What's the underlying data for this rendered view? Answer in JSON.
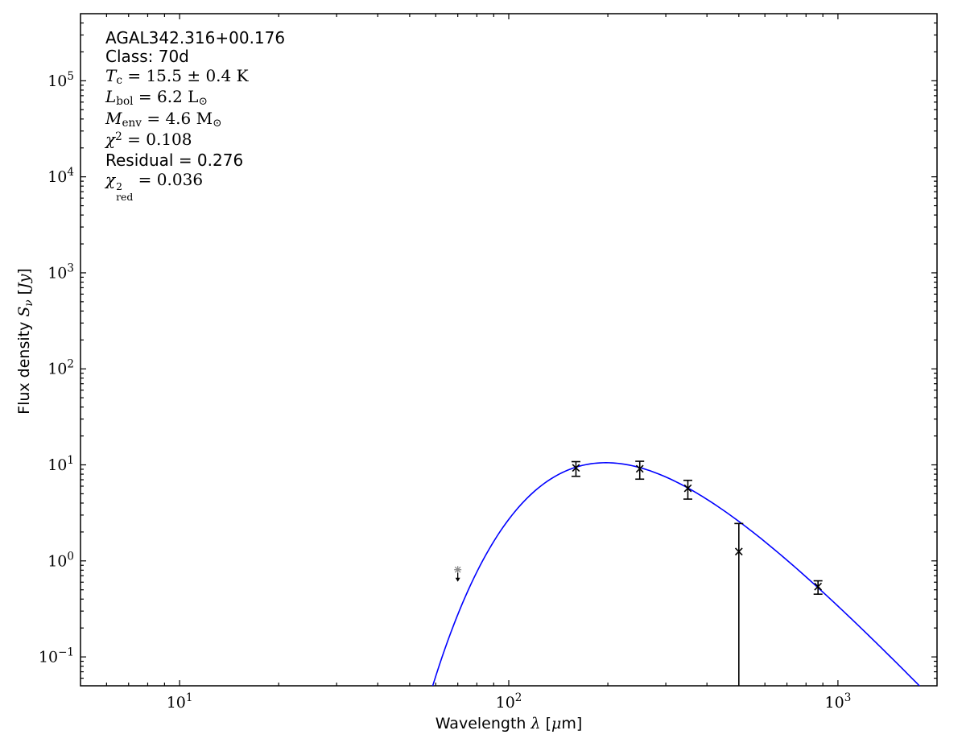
{
  "page": {
    "background": "#ffffff"
  },
  "annotation": {
    "lines": [
      {
        "name": "source-name",
        "font": "sans",
        "segs": [
          {
            "t": "AGAL342.316+00.176"
          }
        ]
      },
      {
        "name": "class-label",
        "font": "sans",
        "segs": [
          {
            "t": "Class: 70d"
          }
        ]
      },
      {
        "name": "dust-temperature",
        "font": "math",
        "segs": [
          {
            "t": "T",
            "it": true
          },
          {
            "t": "c",
            "sub": true
          },
          {
            "t": " = 15.5 ± 0.4 K"
          }
        ]
      },
      {
        "name": "bolometric-luminosity",
        "font": "math",
        "segs": [
          {
            "t": "L",
            "it": true
          },
          {
            "t": "bol",
            "sub": true
          },
          {
            "t": " = 6.2 L"
          },
          {
            "t": "⊙",
            "sub": true
          }
        ]
      },
      {
        "name": "envelope-mass",
        "font": "math",
        "segs": [
          {
            "t": "M",
            "it": true
          },
          {
            "t": "env",
            "sub": true
          },
          {
            "t": " = 4.6 M"
          },
          {
            "t": "⊙",
            "sub": true
          }
        ]
      },
      {
        "name": "chi-squared",
        "font": "math",
        "segs": [
          {
            "t": "χ",
            "it": true
          },
          {
            "t": "2",
            "sup": true
          },
          {
            "t": " = 0.108"
          }
        ]
      },
      {
        "name": "residual",
        "font": "sans",
        "segs": [
          {
            "t": "Residual = 0.276"
          }
        ]
      },
      {
        "name": "chi-squared-reduced",
        "font": "math",
        "segs": [
          {
            "t": "χ",
            "it": true
          },
          {
            "stack": {
              "top": "2",
              "bot": "red"
            }
          },
          {
            "t": " = 0.036"
          }
        ]
      }
    ]
  },
  "chart_data": {
    "type": "line",
    "description": "Spectral energy distribution (SED) with greybody fit and photometric data points",
    "x_axis": {
      "scale": "log",
      "min": 5,
      "max": 2000,
      "major_tick_values": [
        10,
        100,
        1000
      ],
      "label_plain": "Wavelength λ [μm]"
    },
    "y_axis": {
      "scale": "log",
      "min": 0.05,
      "max": 500000,
      "major_tick_values": [
        0.1,
        1,
        10,
        100,
        1000,
        10000,
        100000
      ],
      "label_plain": "Flux density Sν [Jy]"
    },
    "x_label_segs": [
      {
        "t": "Wavelength ",
        "f": "sans"
      },
      {
        "t": "λ",
        "f": "mathit"
      },
      {
        "t": " [",
        "f": "sans"
      },
      {
        "t": "μ",
        "f": "mathit"
      },
      {
        "t": "m]",
        "f": "sans"
      }
    ],
    "y_label_segs": [
      {
        "t": "Flux density ",
        "f": "sans"
      },
      {
        "t": "S",
        "f": "mathit"
      },
      {
        "t": "ν",
        "f": "mathit",
        "sub": true
      },
      {
        "t": " [",
        "f": "sans"
      },
      {
        "t": "Jy",
        "f": "mathit"
      },
      {
        "t": "]",
        "f": "sans"
      }
    ],
    "fit_curve": {
      "model": "greybody",
      "T_K": 15.5,
      "beta": 1.75,
      "amplitude": 92000000000000.0,
      "hc_over_k_um_K": 14388,
      "color": "#0000ff",
      "lambda_min_um": 50,
      "lambda_max_um": 2000,
      "reference_points_um_jy": [
        [
          70,
          0.28
        ],
        [
          100,
          2.7
        ],
        [
          160,
          9.4
        ],
        [
          200,
          10.5
        ],
        [
          250,
          9.3
        ],
        [
          350,
          5.8
        ],
        [
          500,
          2.6
        ],
        [
          870,
          0.53
        ],
        [
          1200,
          0.19
        ],
        [
          1790,
          0.05
        ]
      ]
    },
    "points": [
      {
        "lambda_um": 160,
        "flux_jy": 9.3,
        "err_plus_jy": 1.5,
        "err_minus_jy": 1.7
      },
      {
        "lambda_um": 250,
        "flux_jy": 9.1,
        "err_plus_jy": 1.8,
        "err_minus_jy": 2.0
      },
      {
        "lambda_um": 350,
        "flux_jy": 5.7,
        "err_plus_jy": 1.2,
        "err_minus_jy": 1.3
      },
      {
        "lambda_um": 500,
        "flux_jy": 1.25,
        "err_plus_jy": 1.2,
        "err_minus_to_axis": true
      },
      {
        "lambda_um": 870,
        "flux_jy": 0.54,
        "err_plus_jy": 0.08,
        "err_minus_jy": 0.09
      }
    ],
    "upper_limits": [
      {
        "lambda_um": 70,
        "flux_jy": 0.81,
        "marker_color": "#8a8a8a",
        "arrow_color": "#000000"
      }
    ],
    "marker": {
      "shape": "x",
      "color": "#000000"
    },
    "legend": "none",
    "grid": false
  }
}
